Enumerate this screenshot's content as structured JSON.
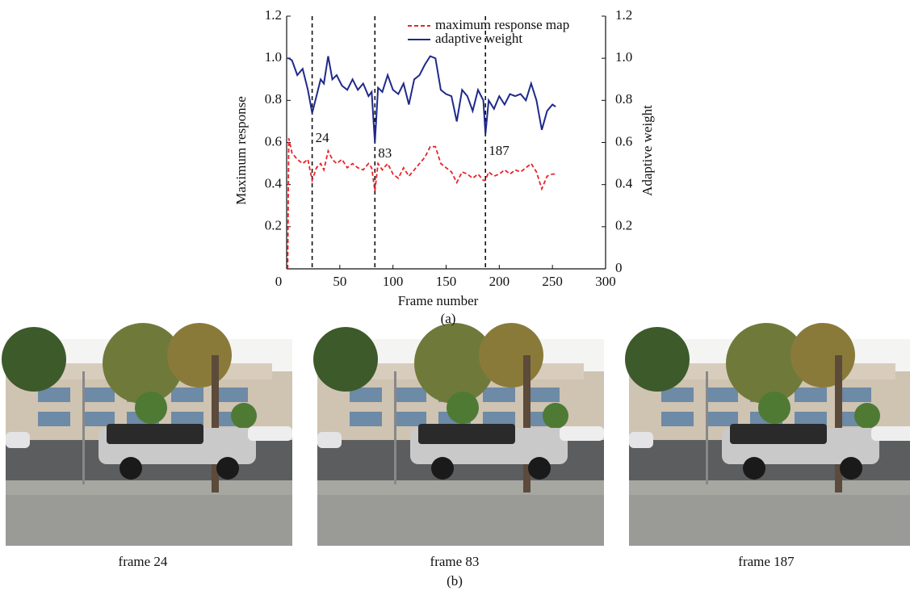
{
  "chart_data": {
    "type": "line",
    "x_label": "Frame number",
    "y_label": "Maximum response",
    "y2_label": "Adaptive weight",
    "panel_label": "(a)",
    "x": [
      1,
      2,
      5,
      10,
      15,
      20,
      24,
      28,
      32,
      35,
      39,
      43,
      47,
      52,
      57,
      62,
      67,
      72,
      77,
      80,
      83,
      86,
      90,
      95,
      100,
      105,
      110,
      115,
      120,
      125,
      130,
      135,
      140,
      145,
      150,
      155,
      160,
      165,
      170,
      175,
      180,
      185,
      187,
      190,
      195,
      200,
      205,
      210,
      215,
      220,
      225,
      230,
      235,
      240,
      245,
      250,
      253
    ],
    "series": [
      {
        "name": "maximum response map",
        "color": "#e8232a",
        "dash": true,
        "values": [
          0.0,
          0.62,
          0.55,
          0.52,
          0.5,
          0.52,
          0.42,
          0.48,
          0.5,
          0.47,
          0.56,
          0.52,
          0.5,
          0.52,
          0.48,
          0.5,
          0.48,
          0.47,
          0.5,
          0.48,
          0.37,
          0.5,
          0.47,
          0.5,
          0.45,
          0.43,
          0.48,
          0.44,
          0.47,
          0.5,
          0.53,
          0.58,
          0.58,
          0.5,
          0.48,
          0.46,
          0.41,
          0.46,
          0.45,
          0.43,
          0.45,
          0.42,
          0.42,
          0.46,
          0.44,
          0.45,
          0.47,
          0.45,
          0.47,
          0.46,
          0.48,
          0.5,
          0.46,
          0.38,
          0.44,
          0.45,
          0.45
        ]
      },
      {
        "name": "adaptive weight",
        "color": "#1f2a8a",
        "axis": "y2",
        "values": [
          1.0,
          1.0,
          0.99,
          0.92,
          0.95,
          0.85,
          0.74,
          0.82,
          0.9,
          0.88,
          1.01,
          0.9,
          0.92,
          0.87,
          0.85,
          0.9,
          0.85,
          0.88,
          0.82,
          0.84,
          0.6,
          0.86,
          0.84,
          0.92,
          0.85,
          0.83,
          0.88,
          0.78,
          0.9,
          0.92,
          0.97,
          1.01,
          1.0,
          0.85,
          0.83,
          0.82,
          0.7,
          0.85,
          0.82,
          0.75,
          0.85,
          0.8,
          0.64,
          0.8,
          0.76,
          0.82,
          0.78,
          0.83,
          0.82,
          0.83,
          0.8,
          0.88,
          0.8,
          0.66,
          0.75,
          0.78,
          0.77
        ]
      }
    ],
    "vlines": [
      24,
      83,
      187
    ],
    "xlim": [
      0,
      300
    ],
    "xticks": [
      0,
      50,
      100,
      150,
      200,
      250,
      300
    ],
    "ylim": [
      0,
      1.2
    ],
    "yticks": [
      0.2,
      0.4,
      0.6,
      0.8,
      {
        "value": 1,
        "label": "1.0"
      },
      1.2
    ],
    "y2lim": [
      0,
      1.2
    ],
    "y2ticks": [
      0,
      0.2,
      0.4,
      0.6,
      0.8,
      {
        "value": 1,
        "label": "1.0"
      },
      1.2
    ],
    "legend": "upper right"
  },
  "photos": [
    {
      "caption": "frame 24"
    },
    {
      "caption": "frame 83"
    },
    {
      "caption": "frame 187"
    }
  ],
  "panel_b_label": "(b)"
}
